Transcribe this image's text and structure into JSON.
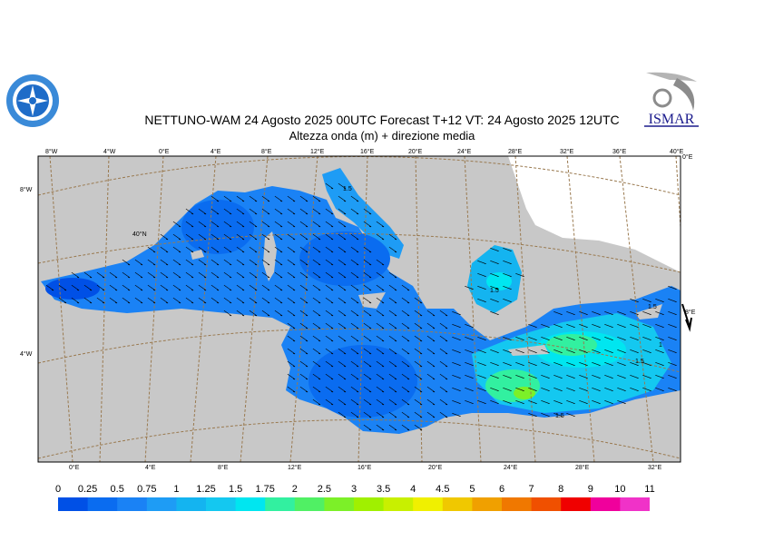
{
  "title": "NETTUNO-WAM  24   Agosto  2025 00UTC Forecast T+12 VT: 24   Agosto  2025 12UTC",
  "subtitle": "Altezza onda (m) + direzione media",
  "logos": {
    "right_text": "ISMAR"
  },
  "map": {
    "top_lon_labels": [
      "8°W",
      "4°W",
      "0°E",
      "4°E",
      "8°E",
      "12°E",
      "16°E",
      "20°E",
      "24°E",
      "28°E",
      "32°E",
      "36°E",
      "40°E"
    ],
    "bottom_lon_labels": [
      "0°E",
      "4°E",
      "8°E",
      "12°E",
      "16°E",
      "20°E",
      "24°E",
      "28°E",
      "32°E"
    ],
    "left_lat_labels": [
      "8°W",
      "4°W"
    ],
    "right_lat_labels": [
      "0°E",
      "8°E"
    ],
    "inner_lat_label": "40°N",
    "contour_labels": [
      "1.5",
      "1.5",
      "1.5",
      "1",
      "1.5",
      "1.5"
    ],
    "colors": {
      "land": "#c8c8c8",
      "sea_low": "#0a6cf0",
      "sea_mid": "#14c8f0",
      "sea_high": "#32f0a0",
      "sea_peak": "#7cf028"
    }
  },
  "colorbar": {
    "levels": [
      "0",
      "0.25",
      "0.5",
      "0.75",
      "1",
      "1.25",
      "1.5",
      "1.75",
      "2",
      "2.5",
      "3",
      "3.5",
      "4",
      "4.5",
      "5",
      "6",
      "7",
      "8",
      "9",
      "10",
      "11"
    ],
    "colors": [
      "#0050e6",
      "#0a6cf0",
      "#1a82f5",
      "#1e9cf5",
      "#14b4f0",
      "#14c8f0",
      "#00e6f0",
      "#32f0a0",
      "#50f064",
      "#7cf028",
      "#a0f000",
      "#c8f000",
      "#f0f000",
      "#f0c800",
      "#f0a000",
      "#f07800",
      "#f05000",
      "#f00000",
      "#f0009c",
      "#f032c8"
    ]
  }
}
